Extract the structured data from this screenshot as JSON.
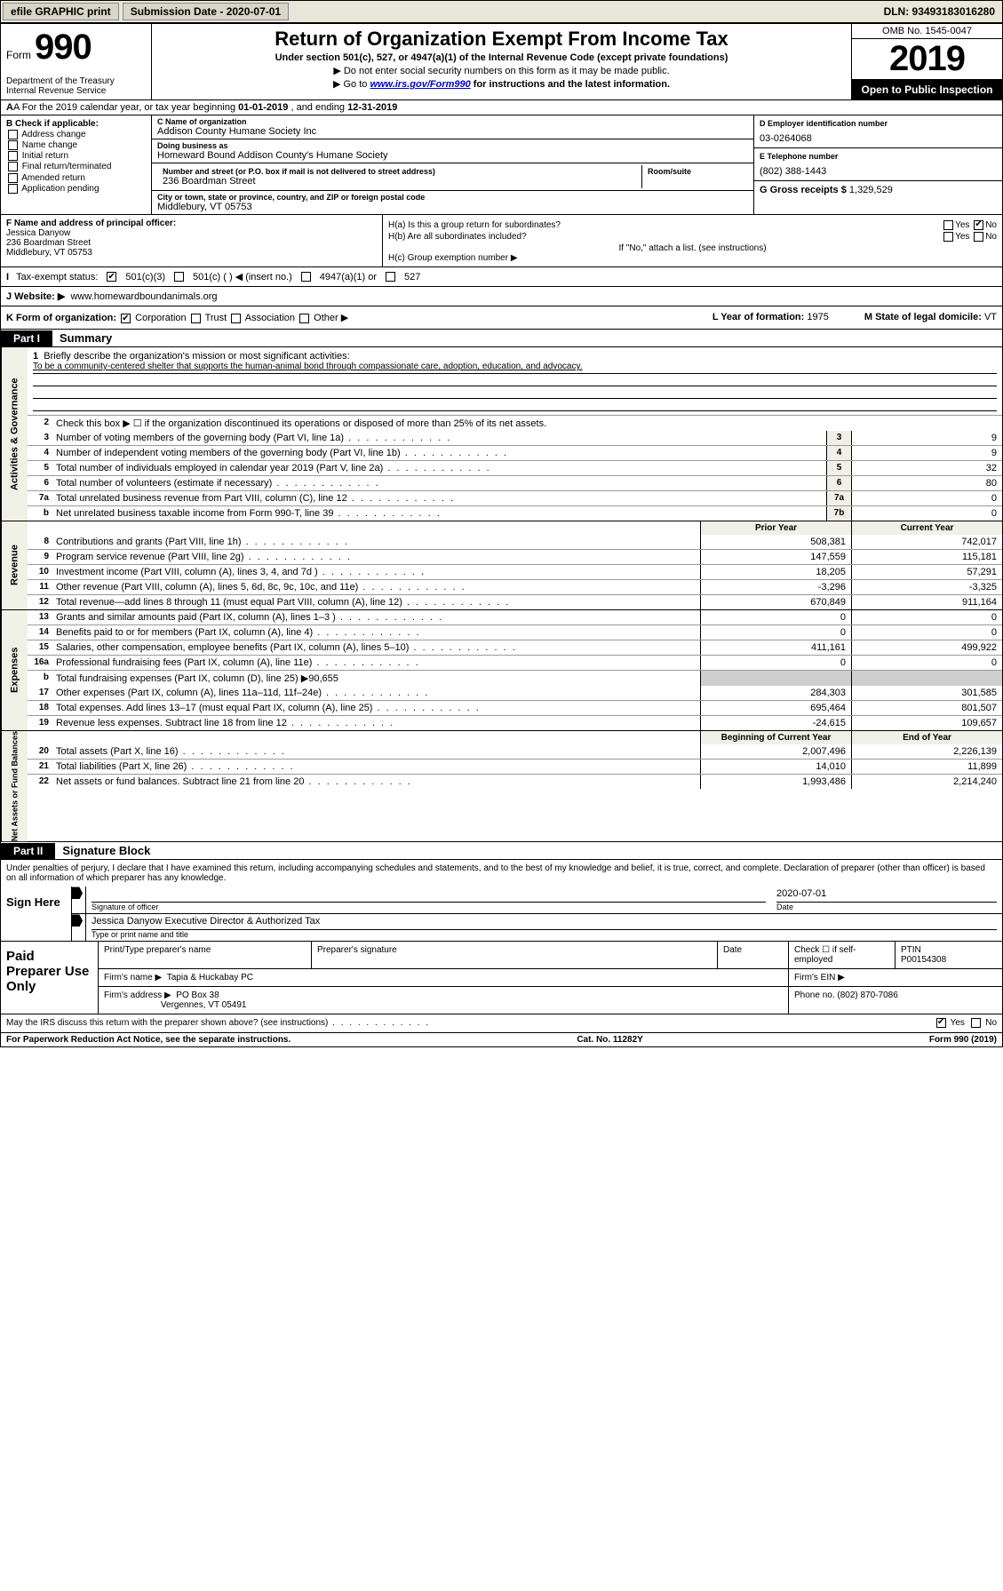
{
  "topbar": {
    "efile": "efile GRAPHIC print",
    "submission_label": "Submission Date - 2020-07-01",
    "dln": "DLN: 93493183016280"
  },
  "header": {
    "form_word": "Form",
    "form_num": "990",
    "dept": "Department of the Treasury\nInternal Revenue Service",
    "title": "Return of Organization Exempt From Income Tax",
    "subtitle": "Under section 501(c), 527, or 4947(a)(1) of the Internal Revenue Code (except private foundations)",
    "instr1": "▶ Do not enter social security numbers on this form as it may be made public.",
    "instr2_pre": "▶ Go to ",
    "instr2_link": "www.irs.gov/Form990",
    "instr2_post": " for instructions and the latest information.",
    "omb": "OMB No. 1545-0047",
    "year": "2019",
    "open": "Open to Public Inspection"
  },
  "rowA": {
    "text_pre": "A For the 2019 calendar year, or tax year beginning ",
    "begin": "01-01-2019",
    "mid": " , and ending ",
    "end": "12-31-2019"
  },
  "colB": {
    "header": "B Check if applicable:",
    "items": [
      "Address change",
      "Name change",
      "Initial return",
      "Final return/terminated",
      "Amended return",
      "Application pending"
    ]
  },
  "colC": {
    "name_label": "C Name of organization",
    "name": "Addison County Humane Society Inc",
    "dba_label": "Doing business as",
    "dba": "Homeward Bound Addison County's Humane Society",
    "street_label": "Number and street (or P.O. box if mail is not delivered to street address)",
    "room_label": "Room/suite",
    "street": "236 Boardman Street",
    "city_label": "City or town, state or province, country, and ZIP or foreign postal code",
    "city": "Middlebury, VT  05753"
  },
  "colD": {
    "ein_label": "D Employer identification number",
    "ein": "03-0264068",
    "phone_label": "E Telephone number",
    "phone": "(802) 388-1443",
    "gross_label": "G Gross receipts $ ",
    "gross": "1,329,529"
  },
  "colF": {
    "label": "F  Name and address of principal officer:",
    "name": "Jessica Danyow",
    "street": "236 Boardman Street",
    "city": "Middlebury, VT  05753"
  },
  "colH": {
    "ha": "H(a)  Is this a group return for subordinates?",
    "hb": "H(b)  Are all subordinates included?",
    "hb_note": "If \"No,\" attach a list. (see instructions)",
    "hc": "H(c)  Group exemption number ▶"
  },
  "rowI": {
    "label": "Tax-exempt status:",
    "opts": [
      "501(c)(3)",
      "501(c) (   ) ◀ (insert no.)",
      "4947(a)(1) or",
      "527"
    ]
  },
  "rowJ": {
    "label": "J   Website: ▶",
    "site": "www.homewardboundanimals.org"
  },
  "rowK": {
    "label": "K Form of organization:",
    "opts": [
      "Corporation",
      "Trust",
      "Association",
      "Other ▶"
    ],
    "year_label": "L Year of formation: ",
    "year": "1975",
    "state_label": "M State of legal domicile: ",
    "state": "VT"
  },
  "part1": {
    "tag": "Part I",
    "title": "Summary"
  },
  "mission": {
    "num": "1",
    "label": "Briefly describe the organization's mission or most significant activities:",
    "text": "To be a community-centered shelter that supports the human-animal bond through compassionate care, adoption, education, and advocacy."
  },
  "gov": {
    "label": "Activities & Governance",
    "line2": "Check this box ▶ ☐  if the organization discontinued its operations or disposed of more than 25% of its net assets.",
    "lines": [
      {
        "n": "3",
        "d": "Number of voting members of the governing body (Part VI, line 1a)",
        "b": "3",
        "v": "9"
      },
      {
        "n": "4",
        "d": "Number of independent voting members of the governing body (Part VI, line 1b)",
        "b": "4",
        "v": "9"
      },
      {
        "n": "5",
        "d": "Total number of individuals employed in calendar year 2019 (Part V, line 2a)",
        "b": "5",
        "v": "32"
      },
      {
        "n": "6",
        "d": "Total number of volunteers (estimate if necessary)",
        "b": "6",
        "v": "80"
      },
      {
        "n": "7a",
        "d": "Total unrelated business revenue from Part VIII, column (C), line 12",
        "b": "7a",
        "v": "0"
      },
      {
        "n": "b",
        "d": "Net unrelated business taxable income from Form 990-T, line 39",
        "b": "7b",
        "v": "0"
      }
    ]
  },
  "rev": {
    "label": "Revenue",
    "hdr_prior": "Prior Year",
    "hdr_curr": "Current Year",
    "lines": [
      {
        "n": "8",
        "d": "Contributions and grants (Part VIII, line 1h)",
        "p": "508,381",
        "c": "742,017"
      },
      {
        "n": "9",
        "d": "Program service revenue (Part VIII, line 2g)",
        "p": "147,559",
        "c": "115,181"
      },
      {
        "n": "10",
        "d": "Investment income (Part VIII, column (A), lines 3, 4, and 7d )",
        "p": "18,205",
        "c": "57,291"
      },
      {
        "n": "11",
        "d": "Other revenue (Part VIII, column (A), lines 5, 6d, 8c, 9c, 10c, and 11e)",
        "p": "-3,296",
        "c": "-3,325"
      },
      {
        "n": "12",
        "d": "Total revenue—add lines 8 through 11 (must equal Part VIII, column (A), line 12)",
        "p": "670,849",
        "c": "911,164"
      }
    ]
  },
  "exp": {
    "label": "Expenses",
    "lines": [
      {
        "n": "13",
        "d": "Grants and similar amounts paid (Part IX, column (A), lines 1–3 )",
        "p": "0",
        "c": "0"
      },
      {
        "n": "14",
        "d": "Benefits paid to or for members (Part IX, column (A), line 4)",
        "p": "0",
        "c": "0"
      },
      {
        "n": "15",
        "d": "Salaries, other compensation, employee benefits (Part IX, column (A), lines 5–10)",
        "p": "411,161",
        "c": "499,922"
      },
      {
        "n": "16a",
        "d": "Professional fundraising fees (Part IX, column (A), line 11e)",
        "p": "0",
        "c": "0"
      }
    ],
    "line_b": {
      "n": "b",
      "d": "Total fundraising expenses (Part IX, column (D), line 25) ▶",
      "v": "90,655"
    },
    "lines2": [
      {
        "n": "17",
        "d": "Other expenses (Part IX, column (A), lines 11a–11d, 11f–24e)",
        "p": "284,303",
        "c": "301,585"
      },
      {
        "n": "18",
        "d": "Total expenses. Add lines 13–17 (must equal Part IX, column (A), line 25)",
        "p": "695,464",
        "c": "801,507"
      },
      {
        "n": "19",
        "d": "Revenue less expenses. Subtract line 18 from line 12",
        "p": "-24,615",
        "c": "109,657"
      }
    ]
  },
  "net": {
    "label": "Net Assets or Fund Balances",
    "hdr_begin": "Beginning of Current Year",
    "hdr_end": "End of Year",
    "lines": [
      {
        "n": "20",
        "d": "Total assets (Part X, line 16)",
        "p": "2,007,496",
        "c": "2,226,139"
      },
      {
        "n": "21",
        "d": "Total liabilities (Part X, line 26)",
        "p": "14,010",
        "c": "11,899"
      },
      {
        "n": "22",
        "d": "Net assets or fund balances. Subtract line 21 from line 20",
        "p": "1,993,486",
        "c": "2,214,240"
      }
    ]
  },
  "part2": {
    "tag": "Part II",
    "title": "Signature Block"
  },
  "sig": {
    "perjury": "Under penalties of perjury, I declare that I have examined this return, including accompanying schedules and statements, and to the best of my knowledge and belief, it is true, correct, and complete. Declaration of preparer (other than officer) is based on all information of which preparer has any knowledge.",
    "sign_here": "Sign Here",
    "sig_officer": "Signature of officer",
    "date": "2020-07-01",
    "date_label": "Date",
    "officer_name": "Jessica Danyow  Executive Director & Authorized Tax",
    "type_label": "Type or print name and title"
  },
  "prep": {
    "label": "Paid Preparer Use Only",
    "print_label": "Print/Type preparer's name",
    "sig_label": "Preparer's signature",
    "date_label": "Date",
    "check_label": "Check ☐ if self-employed",
    "ptin_label": "PTIN",
    "ptin": "P00154308",
    "firm_name_label": "Firm's name    ▶",
    "firm_name": "Tapia & Huckabay PC",
    "firm_ein_label": "Firm's EIN ▶",
    "firm_addr_label": "Firm's address ▶",
    "firm_addr1": "PO Box 38",
    "firm_addr2": "Vergennes, VT  05491",
    "phone_label": "Phone no. ",
    "phone": "(802) 870-7086"
  },
  "footer": {
    "discuss": "May the IRS discuss this return with the preparer shown above? (see instructions)",
    "paperwork": "For Paperwork Reduction Act Notice, see the separate instructions.",
    "cat": "Cat. No. 11282Y",
    "form": "Form 990 (2019)"
  },
  "colors": {
    "topbar_bg": "#e8e6d8",
    "shade": "#cfcfcf",
    "rot_bg": "#f0f0e8"
  }
}
